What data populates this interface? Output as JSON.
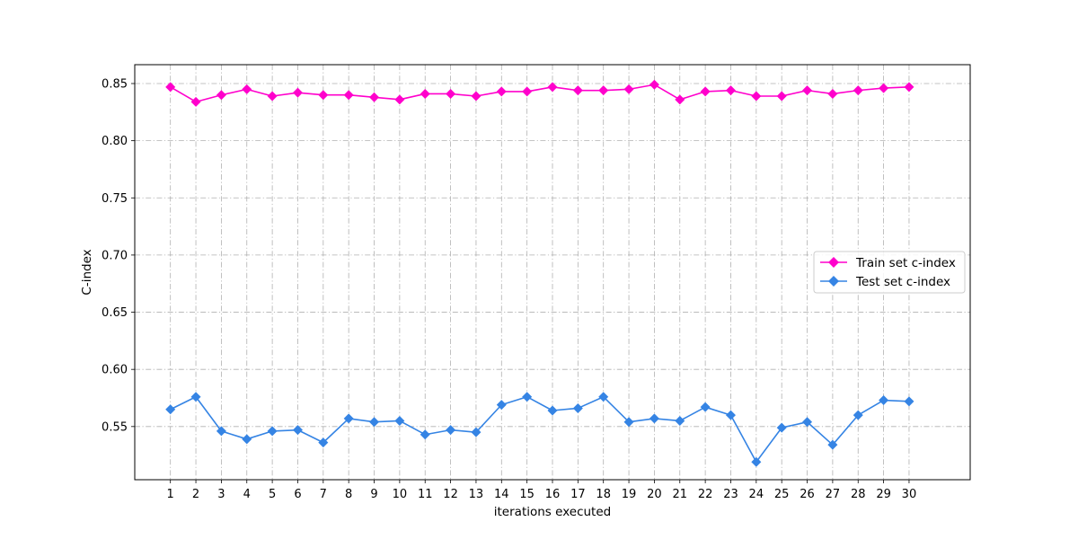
{
  "chart_data": {
    "type": "line",
    "title": "",
    "xlabel": "iterations executed",
    "ylabel": "C-index",
    "x": [
      1,
      2,
      3,
      4,
      5,
      6,
      7,
      8,
      9,
      10,
      11,
      12,
      13,
      14,
      15,
      16,
      17,
      18,
      19,
      20,
      21,
      22,
      23,
      24,
      25,
      26,
      27,
      28,
      29,
      30
    ],
    "xlim": [
      -0.4,
      32.4
    ],
    "ylim": [
      0.5035,
      0.8665
    ],
    "yticks": [
      0.55,
      0.6,
      0.65,
      0.7,
      0.75,
      0.8,
      0.85
    ],
    "ytick_labels": [
      "0.55",
      "0.60",
      "0.65",
      "0.70",
      "0.75",
      "0.80",
      "0.85"
    ],
    "grid": true,
    "legend_position": "center-right",
    "series": [
      {
        "name": "Train set c-index",
        "color": "#ff00cc",
        "marker": "diamond",
        "values": [
          0.847,
          0.834,
          0.84,
          0.845,
          0.839,
          0.842,
          0.84,
          0.84,
          0.838,
          0.836,
          0.841,
          0.841,
          0.839,
          0.843,
          0.843,
          0.847,
          0.844,
          0.844,
          0.845,
          0.849,
          0.836,
          0.843,
          0.844,
          0.839,
          0.839,
          0.844,
          0.841,
          0.844,
          0.846,
          0.847
        ]
      },
      {
        "name": "Test set c-index",
        "color": "#3584e4",
        "marker": "diamond",
        "values": [
          0.565,
          0.576,
          0.546,
          0.539,
          0.546,
          0.547,
          0.536,
          0.557,
          0.554,
          0.555,
          0.543,
          0.547,
          0.545,
          0.569,
          0.576,
          0.564,
          0.566,
          0.576,
          0.554,
          0.557,
          0.555,
          0.567,
          0.56,
          0.519,
          0.549,
          0.554,
          0.534,
          0.56,
          0.573,
          0.572
        ]
      }
    ]
  }
}
